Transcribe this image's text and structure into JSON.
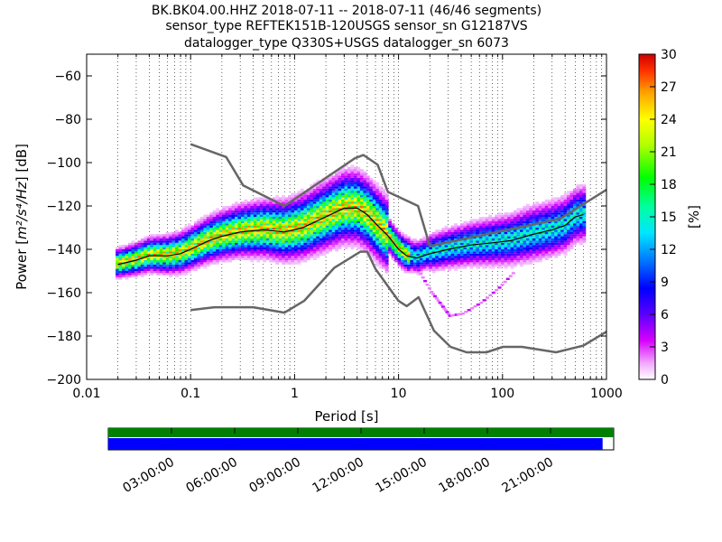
{
  "chart_data": [
    {
      "type": "heatmap",
      "title_lines": [
        "BK.BK04.00.HHZ   2018-07-11 -- 2018-07-11  (46/46 segments)",
        "sensor_type REFTEK151B-120USGS sensor_sn G12187VS",
        "datalogger_type Q330S+USGS datalogger_sn 6073"
      ],
      "xlabel": "Period [s]",
      "ylabel_prefix": "Power [",
      "ylabel_units": "m²/s⁴/Hz",
      "ylabel_suffix": "] [dB]",
      "x_scale": "log",
      "xlim": [
        0.01,
        1000
      ],
      "ylim": [
        -200,
        -50
      ],
      "x_ticks": [
        {
          "value": 0.01,
          "label": "0.01"
        },
        {
          "value": 0.1,
          "label": "0.1"
        },
        {
          "value": 1,
          "label": "1"
        },
        {
          "value": 10,
          "label": "10"
        },
        {
          "value": 100,
          "label": "100"
        },
        {
          "value": 1000,
          "label": "1000"
        }
      ],
      "y_ticks": [
        {
          "value": -60,
          "label": "−60"
        },
        {
          "value": -80,
          "label": "−80"
        },
        {
          "value": -100,
          "label": "−100"
        },
        {
          "value": -120,
          "label": "−120"
        },
        {
          "value": -140,
          "label": "−140"
        },
        {
          "value": -160,
          "label": "−160"
        },
        {
          "value": -180,
          "label": "−180"
        },
        {
          "value": -200,
          "label": "−200"
        }
      ],
      "grid": "vertical dotted at log subdivisions",
      "noise_models": {
        "high": {
          "period": [
            0.1,
            0.22,
            0.32,
            0.8,
            3.8,
            4.6,
            6.3,
            7.9,
            15.4,
            20,
            354.8,
            1000
          ],
          "db": [
            -91.5,
            -97.4,
            -110.5,
            -120,
            -98,
            -96.5,
            -101,
            -113.5,
            -120,
            -138.5,
            -126,
            -112.5
          ]
        },
        "low": {
          "period": [
            0.1,
            0.17,
            0.4,
            0.8,
            1.24,
            2.4,
            4.3,
            5,
            6,
            10,
            12,
            15.6,
            21.9,
            31.6,
            45,
            70,
            101,
            154,
            328,
            600,
            1000
          ],
          "db": [
            -168,
            -166.7,
            -166.7,
            -169.2,
            -163.7,
            -148.6,
            -141.1,
            -141.1,
            -149,
            -163.8,
            -166.2,
            -162.1,
            -177.5,
            -185,
            -187.5,
            -187.5,
            -185,
            -185,
            -187.5,
            -184.4,
            -178
          ]
        }
      },
      "mode_curve": {
        "period": [
          0.02,
          0.03,
          0.04,
          0.05,
          0.06,
          0.08,
          0.1,
          0.15,
          0.2,
          0.3,
          0.5,
          0.8,
          1.2,
          2,
          3,
          4,
          5,
          6,
          8,
          10,
          12,
          15,
          20,
          30,
          50,
          80,
          120,
          200,
          300,
          400,
          500,
          600
        ],
        "db": [
          -147,
          -145,
          -143,
          -143,
          -143,
          -142,
          -140,
          -136,
          -134,
          -132,
          -131,
          -132,
          -130,
          -125,
          -121,
          -121,
          -124,
          -128,
          -134,
          -140,
          -143,
          -144,
          -142,
          -140,
          -138,
          -137,
          -136,
          -133,
          -131,
          -129,
          -125,
          -124
        ]
      },
      "colorbar": {
        "label": "[%]",
        "min": 0,
        "max": 30,
        "ticks": [
          0,
          3,
          6,
          9,
          12,
          15,
          18,
          21,
          24,
          27,
          30
        ]
      }
    },
    {
      "type": "timeline",
      "time_ticks": [
        "03:00:00",
        "06:00:00",
        "09:00:00",
        "12:00:00",
        "15:00:00",
        "18:00:00",
        "21:00:00"
      ],
      "colors": {
        "top_bar": "#008000",
        "bottom_bar": "#0000ff"
      },
      "bottom_bar_coverage": 0.978
    }
  ]
}
